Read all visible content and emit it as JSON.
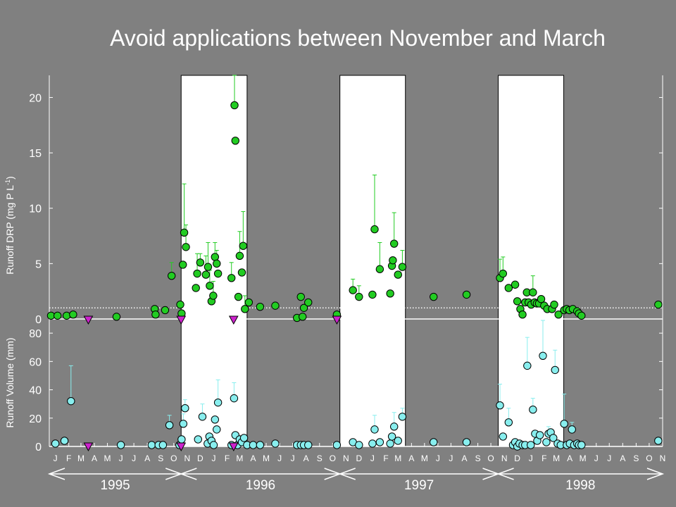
{
  "title": "Avoid applications between November and March",
  "colors": {
    "background": "#808080",
    "drp_point": "#22cc22",
    "volume_point": "#88eeee",
    "application_marker": "#cc22cc",
    "white_band": "#ffffff"
  },
  "chart_data": [
    {
      "type": "scatter",
      "panel": "top",
      "ylabel": "Runoff DRP (mg P L",
      "ylabel_sup": "-1",
      "ylabel_end": ")",
      "ylim": [
        0,
        22
      ],
      "yticks": [
        0,
        5,
        10,
        15,
        20
      ],
      "xlim": [
        "1995-01-01",
        "1998-11-15"
      ],
      "reference_line_y": 1.0,
      "white_bands": [
        [
          "1995-11-01",
          "1996-04-01"
        ],
        [
          "1996-11-01",
          "1997-04-01"
        ],
        [
          "1997-11-01",
          "1998-04-01"
        ]
      ],
      "series": [
        {
          "points": [
            {
              "x": "1995-01-05",
              "y": 0.3
            },
            {
              "x": "1995-01-20",
              "y": 0.3
            },
            {
              "x": "1995-02-10",
              "y": 0.3
            },
            {
              "x": "1995-02-25",
              "y": 0.4
            },
            {
              "x": "1995-06-05",
              "y": 0.2
            },
            {
              "x": "1995-09-01",
              "y": 0.9
            },
            {
              "x": "1995-09-03",
              "y": 0.4
            },
            {
              "x": "1995-09-25",
              "y": 0.8
            },
            {
              "x": "1995-10-10",
              "y": 3.9,
              "err": 1.2
            },
            {
              "x": "1995-10-30",
              "y": 1.3
            },
            {
              "x": "1995-11-02",
              "y": 0.5
            },
            {
              "x": "1995-11-05",
              "y": 4.9
            },
            {
              "x": "1995-11-08",
              "y": 7.8,
              "err": 4.4
            },
            {
              "x": "1995-11-12",
              "y": 6.5,
              "err": 2.0
            },
            {
              "x": "1995-12-05",
              "y": 2.8
            },
            {
              "x": "1995-12-08",
              "y": 4.1,
              "err": 1.8
            },
            {
              "x": "1995-12-15",
              "y": 5.1,
              "err": 0.8
            },
            {
              "x": "1995-12-28",
              "y": 4.0,
              "err": 1.7
            },
            {
              "x": "1996-01-02",
              "y": 4.7,
              "err": 2.2
            },
            {
              "x": "1996-01-06",
              "y": 3.0,
              "err": 1.4
            },
            {
              "x": "1996-01-10",
              "y": 1.6
            },
            {
              "x": "1996-01-14",
              "y": 2.1,
              "err": 1.3
            },
            {
              "x": "1996-01-18",
              "y": 5.6,
              "err": 1.3
            },
            {
              "x": "1996-01-22",
              "y": 5.0,
              "err": 1.2
            },
            {
              "x": "1996-01-25",
              "y": 4.1
            },
            {
              "x": "1996-02-25",
              "y": 3.7,
              "err": 1.4
            },
            {
              "x": "1996-03-03",
              "y": 19.3,
              "err": 3.0
            },
            {
              "x": "1996-03-05",
              "y": 16.1
            },
            {
              "x": "1996-03-12",
              "y": 2.0
            },
            {
              "x": "1996-03-15",
              "y": 5.7,
              "err": 2.2
            },
            {
              "x": "1996-03-20",
              "y": 4.2
            },
            {
              "x": "1996-03-23",
              "y": 6.6,
              "err": 3.1
            },
            {
              "x": "1996-03-27",
              "y": 0.9,
              "err": 1.2
            },
            {
              "x": "1996-04-05",
              "y": 1.5
            },
            {
              "x": "1996-05-01",
              "y": 1.1
            },
            {
              "x": "1996-06-05",
              "y": 1.2
            },
            {
              "x": "1996-07-25",
              "y": 0.1
            },
            {
              "x": "1996-08-03",
              "y": 2.0
            },
            {
              "x": "1996-08-07",
              "y": 0.2
            },
            {
              "x": "1996-08-10",
              "y": 1.0
            },
            {
              "x": "1996-08-20",
              "y": 1.5
            },
            {
              "x": "1996-10-25",
              "y": 0.4
            },
            {
              "x": "1996-12-01",
              "y": 2.6,
              "err": 1.0
            },
            {
              "x": "1996-12-15",
              "y": 2.0,
              "err": 1.0
            },
            {
              "x": "1997-01-15",
              "y": 2.2
            },
            {
              "x": "1997-01-20",
              "y": 8.1,
              "err": 4.9
            },
            {
              "x": "1997-02-01",
              "y": 4.5,
              "err": 2.4
            },
            {
              "x": "1997-02-25",
              "y": 2.3
            },
            {
              "x": "1997-03-01",
              "y": 4.8
            },
            {
              "x": "1997-03-03",
              "y": 5.3
            },
            {
              "x": "1997-03-06",
              "y": 6.8,
              "err": 2.8
            },
            {
              "x": "1997-03-15",
              "y": 4.0
            },
            {
              "x": "1997-03-25",
              "y": 4.7,
              "err": 1.5
            },
            {
              "x": "1997-06-05",
              "y": 2.0
            },
            {
              "x": "1997-08-20",
              "y": 2.2
            },
            {
              "x": "1997-11-05",
              "y": 3.7,
              "err": 1.7
            },
            {
              "x": "1997-11-12",
              "y": 4.1,
              "err": 1.5
            },
            {
              "x": "1997-11-25",
              "y": 2.8
            },
            {
              "x": "1997-12-10",
              "y": 3.1
            },
            {
              "x": "1997-12-15",
              "y": 1.6
            },
            {
              "x": "1997-12-22",
              "y": 0.9
            },
            {
              "x": "1997-12-27",
              "y": 0.4
            },
            {
              "x": "1998-01-02",
              "y": 1.5
            },
            {
              "x": "1998-01-06",
              "y": 2.4
            },
            {
              "x": "1998-01-10",
              "y": 1.5
            },
            {
              "x": "1998-01-16",
              "y": 1.3
            },
            {
              "x": "1998-01-20",
              "y": 2.4,
              "err": 1.5
            },
            {
              "x": "1998-01-24",
              "y": 1.5
            },
            {
              "x": "1998-01-29",
              "y": 1.4
            },
            {
              "x": "1998-02-03",
              "y": 1.4
            },
            {
              "x": "1998-02-08",
              "y": 1.8
            },
            {
              "x": "1998-02-15",
              "y": 1.2
            },
            {
              "x": "1998-02-22",
              "y": 0.9
            },
            {
              "x": "1998-03-05",
              "y": 0.9
            },
            {
              "x": "1998-03-10",
              "y": 1.3
            },
            {
              "x": "1998-03-20",
              "y": 0.4
            },
            {
              "x": "1998-04-02",
              "y": 0.8
            },
            {
              "x": "1998-04-08",
              "y": 0.9
            },
            {
              "x": "1998-04-14",
              "y": 0.8
            },
            {
              "x": "1998-04-22",
              "y": 0.9
            },
            {
              "x": "1998-05-02",
              "y": 0.7
            },
            {
              "x": "1998-05-06",
              "y": 0.5
            },
            {
              "x": "1998-05-12",
              "y": 0.3
            },
            {
              "x": "1998-11-05",
              "y": 1.3
            }
          ]
        }
      ],
      "application_markers": [
        "1995-04-01",
        "1995-11-01",
        "1996-03-01",
        "1996-10-25"
      ]
    },
    {
      "type": "scatter",
      "panel": "bottom",
      "ylabel": "Runoff Volume (mm)",
      "ylim": [
        0,
        90
      ],
      "yticks": [
        0,
        20,
        40,
        60,
        80
      ],
      "xlim": [
        "1995-01-01",
        "1998-11-15"
      ],
      "series": [
        {
          "points": [
            {
              "x": "1995-01-15",
              "y": 2
            },
            {
              "x": "1995-02-05",
              "y": 4
            },
            {
              "x": "1995-02-20",
              "y": 32,
              "err": 25
            },
            {
              "x": "1995-06-15",
              "y": 1
            },
            {
              "x": "1995-08-25",
              "y": 1
            },
            {
              "x": "1995-09-10",
              "y": 1
            },
            {
              "x": "1995-09-20",
              "y": 1
            },
            {
              "x": "1995-10-05",
              "y": 15,
              "err": 7
            },
            {
              "x": "1995-10-28",
              "y": 1
            },
            {
              "x": "1995-11-02",
              "y": 5
            },
            {
              "x": "1995-11-06",
              "y": 16,
              "err": 7
            },
            {
              "x": "1995-11-10",
              "y": 27,
              "err": 6
            },
            {
              "x": "1995-12-10",
              "y": 5
            },
            {
              "x": "1995-12-20",
              "y": 21,
              "err": 9
            },
            {
              "x": "1996-01-01",
              "y": 2
            },
            {
              "x": "1996-01-05",
              "y": 7
            },
            {
              "x": "1996-01-10",
              "y": 4
            },
            {
              "x": "1996-01-15",
              "y": 1
            },
            {
              "x": "1996-01-18",
              "y": 19
            },
            {
              "x": "1996-01-22",
              "y": 12
            },
            {
              "x": "1996-01-25",
              "y": 31,
              "err": 16
            },
            {
              "x": "1996-02-25",
              "y": 1
            },
            {
              "x": "1996-03-02",
              "y": 34,
              "err": 11
            },
            {
              "x": "1996-03-05",
              "y": 8
            },
            {
              "x": "1996-03-10",
              "y": 1
            },
            {
              "x": "1996-03-15",
              "y": 5
            },
            {
              "x": "1996-03-20",
              "y": 3
            },
            {
              "x": "1996-03-25",
              "y": 6
            },
            {
              "x": "1996-04-01",
              "y": 1
            },
            {
              "x": "1996-04-15",
              "y": 1
            },
            {
              "x": "1996-05-01",
              "y": 1
            },
            {
              "x": "1996-06-05",
              "y": 2
            },
            {
              "x": "1996-07-25",
              "y": 1
            },
            {
              "x": "1996-08-03",
              "y": 1
            },
            {
              "x": "1996-08-10",
              "y": 1
            },
            {
              "x": "1996-08-20",
              "y": 1
            },
            {
              "x": "1996-10-25",
              "y": 1
            },
            {
              "x": "1996-12-01",
              "y": 3
            },
            {
              "x": "1996-12-15",
              "y": 1
            },
            {
              "x": "1997-01-15",
              "y": 2
            },
            {
              "x": "1997-01-20",
              "y": 12,
              "err": 10
            },
            {
              "x": "1997-02-01",
              "y": 3
            },
            {
              "x": "1997-02-25",
              "y": 2
            },
            {
              "x": "1997-03-01",
              "y": 7
            },
            {
              "x": "1997-03-06",
              "y": 14,
              "err": 10
            },
            {
              "x": "1997-03-15",
              "y": 4
            },
            {
              "x": "1997-03-25",
              "y": 21,
              "err": 6
            },
            {
              "x": "1997-06-05",
              "y": 3
            },
            {
              "x": "1997-08-20",
              "y": 3
            },
            {
              "x": "1997-11-05",
              "y": 29,
              "err": 15
            },
            {
              "x": "1997-11-12",
              "y": 7
            },
            {
              "x": "1997-11-25",
              "y": 17,
              "err": 10
            },
            {
              "x": "1997-12-05",
              "y": 1
            },
            {
              "x": "1997-12-10",
              "y": 3
            },
            {
              "x": "1997-12-15",
              "y": 0
            },
            {
              "x": "1997-12-20",
              "y": 2
            },
            {
              "x": "1997-12-27",
              "y": 1
            },
            {
              "x": "1998-01-02",
              "y": 1
            },
            {
              "x": "1998-01-07",
              "y": 57,
              "err": 20
            },
            {
              "x": "1998-01-15",
              "y": 1
            },
            {
              "x": "1998-01-20",
              "y": 26,
              "err": 8
            },
            {
              "x": "1998-01-25",
              "y": 9
            },
            {
              "x": "1998-01-30",
              "y": 4
            },
            {
              "x": "1998-02-05",
              "y": 8
            },
            {
              "x": "1998-02-12",
              "y": 64,
              "err": 25
            },
            {
              "x": "1998-02-20",
              "y": 3
            },
            {
              "x": "1998-02-25",
              "y": 9,
              "err": 5
            },
            {
              "x": "1998-03-02",
              "y": 10
            },
            {
              "x": "1998-03-08",
              "y": 6
            },
            {
              "x": "1998-03-12",
              "y": 54,
              "err": 14
            },
            {
              "x": "1998-03-18",
              "y": 2
            },
            {
              "x": "1998-03-25",
              "y": 1
            },
            {
              "x": "1998-04-02",
              "y": 16,
              "err": 21
            },
            {
              "x": "1998-04-08",
              "y": 1
            },
            {
              "x": "1998-04-15",
              "y": 2
            },
            {
              "x": "1998-04-20",
              "y": 12,
              "err": 5
            },
            {
              "x": "1998-04-25",
              "y": 1
            },
            {
              "x": "1998-05-02",
              "y": 2
            },
            {
              "x": "1998-05-06",
              "y": 1
            },
            {
              "x": "1998-05-12",
              "y": 1
            },
            {
              "x": "1998-11-05",
              "y": 4
            }
          ]
        }
      ],
      "application_markers": [
        "1995-04-01",
        "1995-11-01",
        "1996-03-01"
      ]
    }
  ],
  "month_labels": [
    "J",
    "F",
    "M",
    "A",
    "M",
    "J",
    "J",
    "A",
    "S",
    "O",
    "N",
    "D",
    "J",
    "F",
    "M",
    "A",
    "M",
    "J",
    "J",
    "A",
    "S",
    "O",
    "N",
    "D",
    "J",
    "F",
    "M",
    "A",
    "M",
    "J",
    "J",
    "A",
    "S",
    "O",
    "N",
    "D",
    "J",
    "F",
    "M",
    "A",
    "M",
    "J",
    "J",
    "A",
    "S",
    "O",
    "N"
  ],
  "years": [
    {
      "label": "1995",
      "start": "1995-01-01",
      "end": "1995-11-01"
    },
    {
      "label": "1996",
      "start": "1995-11-01",
      "end": "1996-11-01"
    },
    {
      "label": "1997",
      "start": "1996-11-01",
      "end": "1997-11-01"
    },
    {
      "label": "1998",
      "start": "1997-11-01",
      "end": "1998-11-15"
    }
  ]
}
